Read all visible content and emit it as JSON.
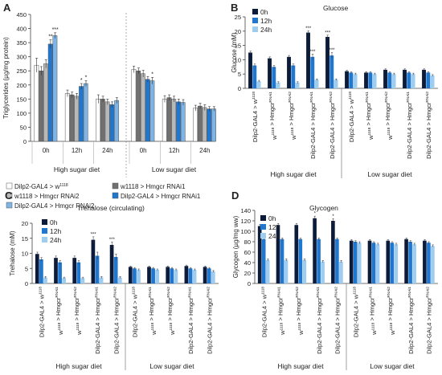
{
  "chart_data": [
    {
      "panel": "A",
      "type": "bar",
      "title": "",
      "ylabel": "Triglycerides (µg/mg protein)",
      "ylim": [
        0,
        450
      ],
      "yticks": [
        0,
        50,
        100,
        150,
        200,
        250,
        300,
        350,
        400,
        450
      ],
      "groups": [
        "High sugar diet",
        "Low sugar diet"
      ],
      "timepoints": [
        "0h",
        "12h",
        "24h",
        "0h",
        "12h",
        "24h"
      ],
      "series": [
        {
          "name": "Dilp2-GAL4 > w1118",
          "color": "#ffffff",
          "values": [
            270,
            170,
            150,
            255,
            150,
            118
          ]
        },
        {
          "name": "w1118 > Hmgcr RNAi1",
          "color": "#707070",
          "values": [
            250,
            165,
            150,
            250,
            155,
            125
          ]
        },
        {
          "name": "w1118 > Hmgcr RNAi2",
          "color": "#b8b8b8",
          "values": [
            275,
            160,
            140,
            240,
            150,
            120
          ]
        },
        {
          "name": "Dilp2-GAL4 > Hmgcr RNAi1",
          "color": "#1f77d0",
          "values": [
            345,
            195,
            130,
            220,
            140,
            115
          ]
        },
        {
          "name": "Dilp2-GAL4 > Hmgcr RNAi2",
          "color": "#7fb5e6",
          "values": [
            375,
            205,
            145,
            215,
            138,
            115
          ]
        }
      ],
      "errors": [
        [
          25,
          12,
          15,
          12,
          12,
          10
        ],
        [
          15,
          10,
          10,
          10,
          10,
          10
        ],
        [
          15,
          10,
          10,
          12,
          10,
          10
        ],
        [
          15,
          10,
          10,
          10,
          10,
          8
        ],
        [
          10,
          10,
          10,
          12,
          10,
          8
        ]
      ],
      "annotations": [
        {
          "label": "**",
          "group": 0,
          "series": 3
        },
        {
          "label": "***",
          "group": 0,
          "series": 4
        },
        {
          "label": "*",
          "group": 1,
          "series": 3
        },
        {
          "label": "*",
          "group": 1,
          "series": 4
        },
        {
          "label": "*",
          "group": 3,
          "series": 4
        }
      ]
    },
    {
      "panel": "B",
      "type": "bar",
      "title": "Glucose",
      "ylabel": "Glucose (mM)",
      "ylim": [
        0,
        25
      ],
      "yticks": [
        0,
        5,
        10,
        15,
        20,
        25
      ],
      "legend": [
        "0h",
        "12h",
        "24h"
      ],
      "colors": [
        "#0d1b3a",
        "#1f77d0",
        "#9fcdf0"
      ],
      "categories": [
        "Dilp2-GAL4 > w1118",
        "w1118 > HmgcrRNAi1",
        "w1118 > HmgcrRNAi2",
        "Dilp2-GAL4 > HmgcrRNAi1",
        "Dilp2-GAL4 > HmgcrRNAi2",
        "Dilp2-GAL4 > w1118",
        "w1118 > HmgcrRNAi1",
        "w1118 > HmgcrRNAi2",
        "Dilp2-GAL4 > HmgcrRNAi1",
        "Dilp2-GAL4 > HmgcrRNAi2"
      ],
      "category_parts": [
        [
          "Dilp2-GAL4 > w",
          "1118"
        ],
        [
          "w",
          "1118",
          " > Hmgcr",
          "RNAi1"
        ],
        [
          "w",
          "1118",
          " > Hmgcr",
          "RNAi2"
        ],
        [
          "Dilp2-GAL4 > Hmgcr",
          "RNAi1"
        ],
        [
          "Dilp2-GAL4 > Hmgcr",
          "RNAi2"
        ],
        [
          "Dilp2-GAL4 > w",
          "1118"
        ],
        [
          "w",
          "1118",
          " > Hmgcr",
          "RNAi1"
        ],
        [
          "w",
          "1118",
          " > Hmgcr",
          "RNAi2"
        ],
        [
          "Dilp2-GAL4 > Hmgcr",
          "RNAi1"
        ],
        [
          "Dilp2-GAL4 > Hmgcr",
          "RNAi2"
        ]
      ],
      "groups": [
        "High sugar diet",
        "Low sugar diet"
      ],
      "series": [
        {
          "name": "0h",
          "values": [
            12.5,
            10.5,
            11.0,
            19.5,
            18.0,
            6.0,
            5.5,
            6.5,
            6.5,
            6.5
          ]
        },
        {
          "name": "12h",
          "values": [
            8.0,
            7.5,
            8.0,
            11.0,
            11.5,
            5.5,
            5.5,
            5.5,
            5.5,
            5.5
          ]
        },
        {
          "name": "24h",
          "values": [
            2.5,
            2.0,
            2.0,
            3.0,
            3.0,
            5.0,
            5.0,
            5.0,
            5.0,
            4.5
          ]
        }
      ],
      "errors": [
        [
          0.5,
          0.5,
          0.5,
          0.6,
          0.6,
          0.3,
          0.3,
          0.3,
          0.3,
          0.3
        ],
        [
          0.5,
          0.5,
          0.5,
          1.0,
          1.0,
          0.3,
          0.3,
          0.3,
          0.3,
          0.3
        ],
        [
          0.3,
          0.3,
          0.3,
          0.3,
          0.3,
          0.3,
          0.3,
          0.3,
          0.3,
          0.3
        ]
      ],
      "annotations": [
        {
          "label": "***",
          "category": 3,
          "series": 0
        },
        {
          "label": "***",
          "category": 3,
          "series": 1
        },
        {
          "label": "***",
          "category": 4,
          "series": 0
        },
        {
          "label": "***",
          "category": 4,
          "series": 1
        }
      ]
    },
    {
      "panel": "C",
      "type": "bar",
      "title": "Trehalose (circulating)",
      "ylabel": "Trehalose (mM)",
      "ylim": [
        0,
        20
      ],
      "yticks": [
        0,
        5,
        10,
        15,
        20
      ],
      "legend": [
        "0h",
        "12h",
        "24h"
      ],
      "colors": [
        "#0d1b3a",
        "#1f77d0",
        "#9fcdf0"
      ],
      "categories": [
        "Dilp2-GAL4 > w1118",
        "w1118 > HmgcrRNAi1",
        "w1118 > HmgcrRNAi2",
        "Dilp2-GAL4 > HmgcrRNAi1",
        "Dilp2-GAL4 > HmgcrRNAi2",
        "Dilp2-GAL4 > w1118",
        "w1118 > HmgcrRNAi1",
        "w1118 > HmgcrRNAi2",
        "Dilp2-GAL4 > HmgcrRNAi1",
        "Dilp2-GAL4 > HmgcrRNAi2"
      ],
      "category_parts": [
        [
          "Dilp2-GAL4 > w",
          "1118"
        ],
        [
          "w",
          "1118",
          " > Hmgcr",
          "RNAi1"
        ],
        [
          "w",
          "1118",
          " > Hmgcr",
          "RNAi2"
        ],
        [
          "Dilp2-GAL4 > Hmgcr",
          "RNAi1"
        ],
        [
          "Dilp2-GAL4 > Hmgcr",
          "RNAi2"
        ],
        [
          "Dilp2-GAL4 > w",
          "1118"
        ],
        [
          "w",
          "1118",
          " > Hmgcr",
          "RNAi1"
        ],
        [
          "w",
          "1118",
          " > Hmgcr",
          "RNAi2"
        ],
        [
          "Dilp2-GAL4 > Hmgcr",
          "RNAi1"
        ],
        [
          "Dilp2-GAL4 > Hmgcr",
          "RNAi2"
        ]
      ],
      "groups": [
        "High sugar diet",
        "Low sugar diet"
      ],
      "series": [
        {
          "name": "0h",
          "values": [
            9.8,
            8.5,
            8.5,
            14.5,
            12.8,
            5.5,
            5.5,
            5.5,
            5.8,
            5.5
          ]
        },
        {
          "name": "12h",
          "values": [
            8.0,
            7.0,
            7.0,
            9.2,
            8.8,
            5.0,
            5.0,
            5.0,
            5.0,
            5.0
          ]
        },
        {
          "name": "24h",
          "values": [
            2.0,
            1.8,
            1.8,
            2.0,
            2.0,
            4.5,
            4.5,
            4.5,
            4.5,
            4.0
          ]
        }
      ],
      "errors": [
        [
          0.6,
          0.6,
          0.6,
          1.0,
          1.0,
          0.3,
          0.3,
          0.3,
          0.3,
          0.3
        ],
        [
          0.6,
          0.6,
          0.6,
          1.2,
          1.0,
          0.3,
          0.3,
          0.3,
          0.3,
          0.3
        ],
        [
          0.3,
          0.3,
          0.3,
          0.3,
          0.3,
          0.3,
          0.3,
          0.3,
          0.3,
          0.3
        ]
      ],
      "annotations": [
        {
          "label": "***",
          "category": 3,
          "series": 0
        },
        {
          "label": "***",
          "category": 4,
          "series": 0
        }
      ]
    },
    {
      "panel": "D",
      "type": "bar",
      "title": "Glycogen",
      "ylabel": "Glycogen (µg/mg ww)",
      "ylim": [
        0,
        140
      ],
      "yticks": [
        0,
        20,
        40,
        60,
        80,
        100,
        120,
        140
      ],
      "legend": [
        "0h",
        "12h",
        "24h"
      ],
      "colors": [
        "#0d1b3a",
        "#1f77d0",
        "#9fcdf0"
      ],
      "categories": [
        "Dilp2-GAL4 > w1118",
        "w1118 > HmgcrRNAi1",
        "w1118 > HmgcrRNAi2",
        "Dilp2-GAL4 > HmgcrRNAi1",
        "Dilp2-GAL4 > HmgcrRNAi2",
        "Dilp2-GAL4 > w1118",
        "w1118 > HmgcrRNAi1",
        "w1118 > HmgcrRNAi2",
        "Dilp2-GAL4 > HmgcrRNAi1",
        "Dilp2-GAL4 > HmgcrRNAi2"
      ],
      "category_parts": [
        [
          "Dilp2-GAL4 > w",
          "1118"
        ],
        [
          "w",
          "1118",
          " > Hmgcr",
          "RNAi1"
        ],
        [
          "w",
          "1118",
          " > Hmgcr",
          "RNAi2"
        ],
        [
          "Dilp2-GAL4 > Hmgcr",
          "RNAi1"
        ],
        [
          "Dilp2-GAL4 > Hmgcr",
          "RNAi2"
        ],
        [
          "Dilp2-GAL4 > w",
          "1118"
        ],
        [
          "w",
          "1118",
          " > Hmgcr",
          "RNAi1"
        ],
        [
          "w",
          "1118",
          " > Hmgcr",
          "RNAi2"
        ],
        [
          "Dilp2-GAL4 > Hmgcr",
          "RNAi1"
        ],
        [
          "Dilp2-GAL4 > Hmgcr",
          "RNAi2"
        ]
      ],
      "groups": [
        "High sugar diet",
        "Low sugar diet"
      ],
      "series": [
        {
          "name": "0h",
          "values": [
            110,
            112,
            112,
            125,
            120,
            82,
            82,
            82,
            85,
            82
          ]
        },
        {
          "name": "12h",
          "values": [
            85,
            85,
            85,
            85,
            85,
            80,
            78,
            78,
            80,
            78
          ]
        },
        {
          "name": "24h",
          "values": [
            45,
            45,
            45,
            42,
            42,
            78,
            75,
            75,
            75,
            72
          ]
        }
      ],
      "errors": [
        [
          3,
          3,
          3,
          4,
          4,
          2,
          2,
          2,
          2,
          2
        ],
        [
          2,
          2,
          2,
          2,
          2,
          2,
          2,
          2,
          2,
          2
        ],
        [
          2,
          2,
          2,
          2,
          2,
          2,
          2,
          2,
          2,
          2
        ]
      ],
      "annotations": [
        {
          "label": "*",
          "category": 3,
          "series": 0
        },
        {
          "label": "*",
          "category": 4,
          "series": 0
        }
      ]
    }
  ],
  "legend_a": [
    {
      "prefix": "Dilp2-GAL4 > w",
      "sup": "1118",
      "suffix": "",
      "color": "#ffffff"
    },
    {
      "prefix": "w1118 > Hmgcr RNAi1",
      "sup": "",
      "suffix": "",
      "color": "#707070"
    },
    {
      "prefix": "w1118 > Hmgcr RNAi2",
      "sup": "",
      "suffix": "",
      "color": "#b8b8b8"
    },
    {
      "prefix": "Dilp2-GAL4 > Hmgcr RNAi1",
      "sup": "",
      "suffix": "",
      "color": "#1f77d0"
    },
    {
      "prefix": "Dilp2-GAL4 > Hmgcr RNAi2",
      "sup": "",
      "suffix": "",
      "color": "#7fb5e6"
    }
  ]
}
